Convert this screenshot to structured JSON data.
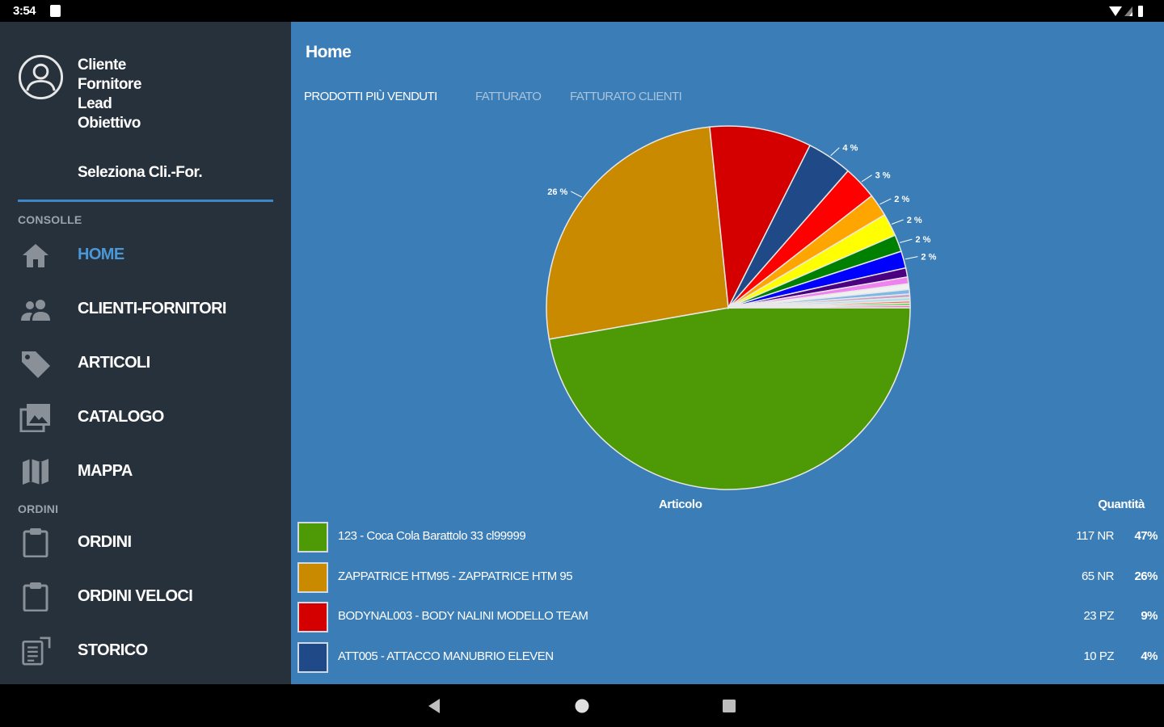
{
  "status_bar": {
    "time": "3:54"
  },
  "sidebar": {
    "account_lines": [
      "Cliente",
      "Fornitore",
      "Lead",
      "Obiettivo"
    ],
    "select_label": "Seleziona Cli.-For.",
    "section_console": "CONSOLLE",
    "section_orders": "ORDINI",
    "nav_items": [
      {
        "label": "HOME",
        "icon": "home-icon",
        "active": true
      },
      {
        "label": "CLIENTI-FORNITORI",
        "icon": "people-icon",
        "active": false
      },
      {
        "label": "ARTICOLI",
        "icon": "tag-icon",
        "active": false
      },
      {
        "label": "CATALOGO",
        "icon": "photo-library-icon",
        "active": false
      },
      {
        "label": "MAPPA",
        "icon": "map-icon",
        "active": false
      },
      {
        "label": "ORDINI",
        "icon": "clipboard-icon",
        "active": false
      },
      {
        "label": "ORDINI VELOCI",
        "icon": "clipboard-icon",
        "active": false
      },
      {
        "label": "STORICO",
        "icon": "history-icon",
        "active": false
      }
    ]
  },
  "main": {
    "title": "Home",
    "tabs": [
      {
        "label": "PRODOTTI PIÙ VENDUTI",
        "active": true
      },
      {
        "label": "FATTURATO",
        "active": false
      },
      {
        "label": "FATTURATO CLIENTI",
        "active": false
      }
    ],
    "column_article": "Articolo",
    "column_quantity": "Quantità",
    "legend": [
      {
        "description": "123 - Coca Cola Barattolo 33 cl99999",
        "quantity": "117 NR",
        "percent": "47%",
        "color": "#4e9a06"
      },
      {
        "description": "ZAPPATRICE HTM95 - ZAPPATRICE HTM 95",
        "quantity": "65 NR",
        "percent": "26%",
        "color": "#c98a00"
      },
      {
        "description": "BODYNAL003 - BODY NALINI MODELLO TEAM",
        "quantity": "23 PZ",
        "percent": "9%",
        "color": "#d40000"
      },
      {
        "description": "ATT005 - ATTACCO MANUBRIO ELEVEN",
        "quantity": "10 PZ",
        "percent": "4%",
        "color": "#204a87"
      }
    ]
  },
  "chart_data": {
    "type": "pie",
    "title": "",
    "slices": [
      {
        "value": 47,
        "color": "#4e9a06",
        "label": ""
      },
      {
        "value": 26,
        "color": "#c98a00",
        "label": "26 %"
      },
      {
        "value": 9,
        "color": "#d40000",
        "label": ""
      },
      {
        "value": 4,
        "color": "#204a87",
        "label": "4 %"
      },
      {
        "value": 3,
        "color": "#ff0000",
        "label": "3 %"
      },
      {
        "value": 2,
        "color": "#ffa500",
        "label": "2 %"
      },
      {
        "value": 2,
        "color": "#ffff00",
        "label": "2 %"
      },
      {
        "value": 1.5,
        "color": "#008000",
        "label": "2 %"
      },
      {
        "value": 1.5,
        "color": "#0000ff",
        "label": "2 %"
      },
      {
        "value": 0.8,
        "color": "#4b0082",
        "label": ""
      },
      {
        "value": 0.6,
        "color": "#ee82ee",
        "label": ""
      },
      {
        "value": 0.5,
        "color": "#f0f0f0",
        "label": ""
      },
      {
        "value": 0.4,
        "color": "#7fb8e6",
        "label": ""
      },
      {
        "value": 0.3,
        "color": "#c8a2c8",
        "label": ""
      },
      {
        "value": 0.3,
        "color": "#b0e0e6",
        "label": ""
      },
      {
        "value": 0.2,
        "color": "#ff6347",
        "label": ""
      },
      {
        "value": 0.2,
        "color": "#32cd32",
        "label": ""
      },
      {
        "value": 0.2,
        "color": "#ff69b4",
        "label": ""
      }
    ]
  }
}
